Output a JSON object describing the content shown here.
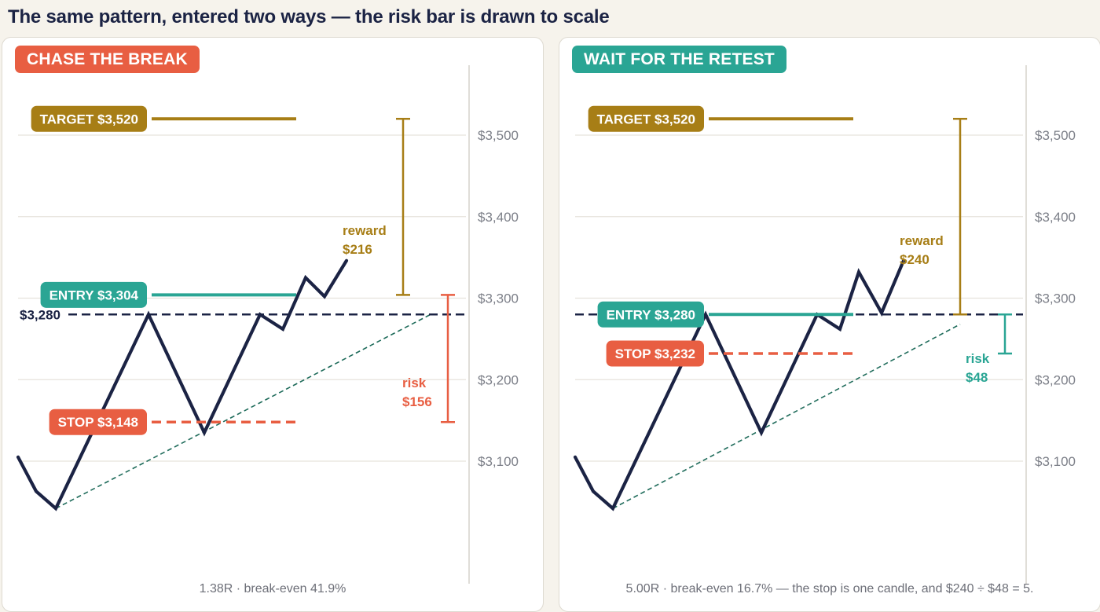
{
  "page": {
    "title": "The same pattern, entered two ways — the risk bar is drawn to scale"
  },
  "colors": {
    "navy": "#1b2344",
    "gold": "#a77e16",
    "teal": "#2aa594",
    "red": "#e85e42",
    "grid": "#e6e3dc",
    "trend": "#1e6b5a"
  },
  "chart_data": [
    {
      "type": "line",
      "title": "CHASE THE BREAK",
      "yticks": [
        "$3,100",
        "$3,200",
        "$3,300",
        "$3,400",
        "$3,500"
      ],
      "ytick_values": [
        3100,
        3200,
        3300,
        3400,
        3500
      ],
      "ylim": [
        2960,
        3590
      ],
      "price_path": [
        3105,
        3063,
        3042,
        3280,
        3135,
        3280,
        3262,
        3325,
        3302,
        3346
      ],
      "breakout_level": {
        "value": 3280,
        "label": "$3,280"
      },
      "trendline": [
        3042,
        3280
      ],
      "target": {
        "value": 3520,
        "label": "TARGET $3,520"
      },
      "entry": {
        "value": 3304,
        "label": "ENTRY $3,304"
      },
      "stop": {
        "value": 3148,
        "label": "STOP $3,148"
      },
      "reward": {
        "label": "reward",
        "amount": "$216"
      },
      "risk": {
        "label": "risk",
        "amount": "$156"
      },
      "footnote": "1.38R · break-even 41.9%"
    },
    {
      "type": "line",
      "title": "WAIT FOR THE RETEST",
      "yticks": [
        "$3,100",
        "$3,200",
        "$3,300",
        "$3,400",
        "$3,500"
      ],
      "ytick_values": [
        3100,
        3200,
        3300,
        3400,
        3500
      ],
      "ylim": [
        2960,
        3590
      ],
      "price_path": [
        3105,
        3063,
        3042,
        3280,
        3135,
        3280,
        3262,
        3332,
        3282,
        3346
      ],
      "breakout_level": {
        "value": 3280,
        "label": ""
      },
      "trendline": [
        3042,
        3268
      ],
      "target": {
        "value": 3520,
        "label": "TARGET $3,520"
      },
      "entry": {
        "value": 3280,
        "label": "ENTRY $3,280"
      },
      "stop": {
        "value": 3232,
        "label": "STOP $3,232"
      },
      "reward": {
        "label": "reward",
        "amount": "$240"
      },
      "risk": {
        "label": "risk",
        "amount": "$48"
      },
      "footnote": "5.00R · break-even 16.7% — the stop is one candle, and $240 ÷ $48 = 5."
    }
  ]
}
